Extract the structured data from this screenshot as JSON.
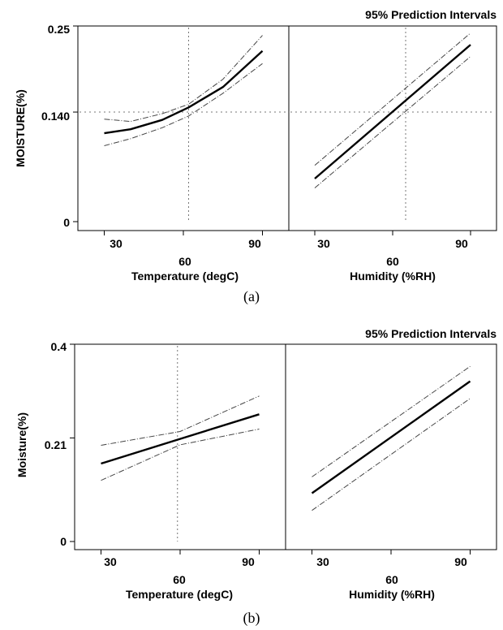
{
  "chart_data": [
    {
      "type": "line",
      "title": "95% Prediction Intervals",
      "caption": "(a)",
      "ylabel": "MOISTURE(%)",
      "ylim": [
        0,
        0.25
      ],
      "yticks": [
        0,
        0.14,
        0.25
      ],
      "ytick_labels": [
        "0",
        "0.140",
        "0.25"
      ],
      "reference_y": 0.14,
      "panels": [
        {
          "xlabel": "Temperature (degC)",
          "xlim": [
            20,
            100
          ],
          "xticks": [
            30,
            60,
            90
          ],
          "xtick_labels": [
            "30",
            "60",
            "90"
          ],
          "reference_x": 62,
          "x": [
            30,
            40,
            52,
            62,
            75,
            90
          ],
          "series": [
            {
              "name": "",
              "role": "fit",
              "values": [
                0.113,
                0.118,
                0.13,
                0.146,
                0.172,
                0.218
              ]
            },
            {
              "name": "",
              "role": "upper",
              "values": [
                0.131,
                0.128,
                0.138,
                0.15,
                0.182,
                0.238
              ]
            },
            {
              "name": "",
              "role": "lower",
              "values": [
                0.097,
                0.106,
                0.12,
                0.135,
                0.164,
                0.202
              ]
            }
          ]
        },
        {
          "xlabel": "Humidity (%RH)",
          "xlim": [
            20,
            100
          ],
          "xticks": [
            30,
            60,
            90
          ],
          "xtick_labels": [
            "30",
            "60",
            "90"
          ],
          "reference_x": 65,
          "x": [
            30,
            90
          ],
          "series": [
            {
              "name": "",
              "role": "fit",
              "values": [
                0.055,
                0.226
              ]
            },
            {
              "name": "",
              "role": "upper",
              "values": [
                0.072,
                0.241
              ]
            },
            {
              "name": "",
              "role": "lower",
              "values": [
                0.043,
                0.211
              ]
            }
          ]
        }
      ]
    },
    {
      "type": "line",
      "title": "95% Prediction Intervals",
      "caption": "(b)",
      "ylabel": "Moisture(%)",
      "ylim": [
        0,
        0.4
      ],
      "yticks": [
        0,
        0.21,
        0.4
      ],
      "ytick_labels": [
        "0",
        "0.21",
        "0.4"
      ],
      "panels": [
        {
          "xlabel": "Temperature (degC)",
          "xlim": [
            20,
            100
          ],
          "xticks": [
            30,
            60,
            90
          ],
          "xtick_labels": [
            "30",
            "60",
            "90"
          ],
          "reference_x": 59,
          "x": [
            30,
            60,
            90
          ],
          "series": [
            {
              "name": "",
              "role": "fit",
              "values": [
                0.158,
                0.208,
                0.258
              ]
            },
            {
              "name": "",
              "role": "upper",
              "values": [
                0.195,
                0.223,
                0.295
              ]
            },
            {
              "name": "",
              "role": "lower",
              "values": [
                0.124,
                0.196,
                0.228
              ]
            }
          ]
        },
        {
          "xlabel": "Humidity (%RH)",
          "xlim": [
            20,
            100
          ],
          "xticks": [
            30,
            60,
            90
          ],
          "xtick_labels": [
            "30",
            "60",
            "90"
          ],
          "x": [
            30,
            90
          ],
          "series": [
            {
              "name": "",
              "role": "fit",
              "values": [
                0.098,
                0.325
              ]
            },
            {
              "name": "",
              "role": "upper",
              "values": [
                0.131,
                0.355
              ]
            },
            {
              "name": "",
              "role": "lower",
              "values": [
                0.063,
                0.29
              ]
            }
          ]
        }
      ]
    }
  ]
}
